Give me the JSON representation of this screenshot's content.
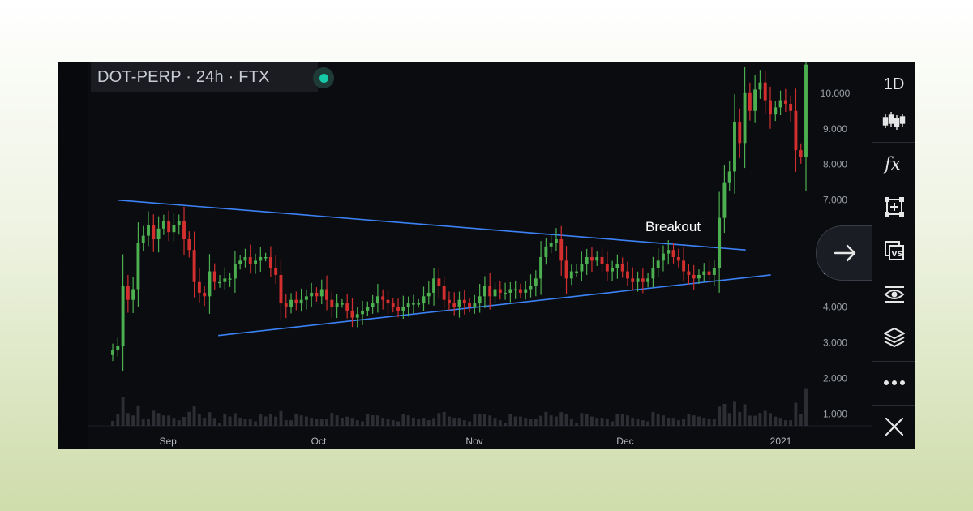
{
  "chart": {
    "title": "DOT-PERP · 24h · FTX",
    "annotation": "Breakout"
  },
  "toolbar": {
    "interval_label": "1D",
    "items": [
      "candles-icon",
      "indicators-icon",
      "drawing-tools-icon",
      "compare-icon",
      "visibility-icon",
      "layers-icon",
      "more-icon",
      "close-icon"
    ]
  },
  "colors": {
    "background": "#0b0c10",
    "up": "#4caf50",
    "down": "#d32f2f",
    "trendline": "#3b82f6",
    "axis_text": "#9aa0a6"
  },
  "chart_data": {
    "type": "candlestick",
    "x_tick_labels": [
      "Sep",
      "Oct",
      "Nov",
      "Dec",
      "2021"
    ],
    "y_tick_labels": [
      "1.000",
      "2.000",
      "3.000",
      "4.000",
      "5.000",
      "6.000",
      "7.000",
      "8.000",
      "9.000",
      "10.000"
    ],
    "ylim": [
      0.7,
      11.0
    ],
    "x_range_days": [
      0,
      138
    ],
    "x_ticks_day": [
      11,
      41,
      72,
      102,
      133
    ],
    "closes": [
      2.8,
      2.9,
      4.6,
      4.2,
      4.5,
      5.8,
      6.0,
      6.3,
      5.9,
      6.2,
      6.4,
      6.1,
      6.3,
      6.4,
      5.9,
      5.6,
      4.7,
      4.4,
      4.3,
      5.0,
      4.7,
      4.7,
      4.8,
      4.8,
      5.2,
      5.3,
      5.4,
      5.2,
      5.3,
      5.4,
      5.4,
      5.1,
      4.9,
      4.1,
      4.0,
      4.2,
      4.1,
      4.2,
      4.3,
      4.4,
      4.3,
      4.5,
      4.2,
      4.0,
      4.1,
      4.1,
      3.9,
      3.7,
      3.8,
      3.9,
      4.0,
      4.1,
      4.3,
      4.2,
      4.1,
      4.0,
      3.9,
      4.0,
      4.1,
      4.1,
      4.1,
      4.3,
      4.4,
      4.8,
      4.6,
      4.2,
      4.1,
      4.0,
      4.2,
      4.1,
      4.0,
      4.1,
      4.3,
      4.6,
      4.3,
      4.5,
      4.4,
      4.4,
      4.5,
      4.5,
      4.4,
      4.5,
      4.6,
      4.8,
      5.4,
      5.7,
      5.8,
      5.9,
      5.3,
      4.8,
      5.0,
      5.0,
      5.2,
      5.4,
      5.3,
      5.4,
      5.2,
      5.0,
      5.1,
      5.2,
      5.0,
      4.8,
      4.7,
      4.8,
      4.7,
      4.8,
      5.1,
      5.3,
      5.5,
      5.6,
      5.4,
      5.3,
      5.0,
      4.9,
      4.8,
      4.9,
      5.0,
      4.9,
      5.1,
      6.5,
      7.5,
      7.8,
      9.2,
      8.6,
      10.0,
      9.5,
      10.1,
      10.3,
      9.8,
      9.4,
      9.6,
      9.8,
      9.7,
      9.5,
      8.4,
      8.2,
      10.8
    ],
    "trendlines": [
      {
        "from": [
          1,
          7.0
        ],
        "to": [
          126,
          5.6
        ]
      },
      {
        "from": [
          21,
          3.2
        ],
        "to": [
          131,
          4.9
        ]
      }
    ]
  }
}
